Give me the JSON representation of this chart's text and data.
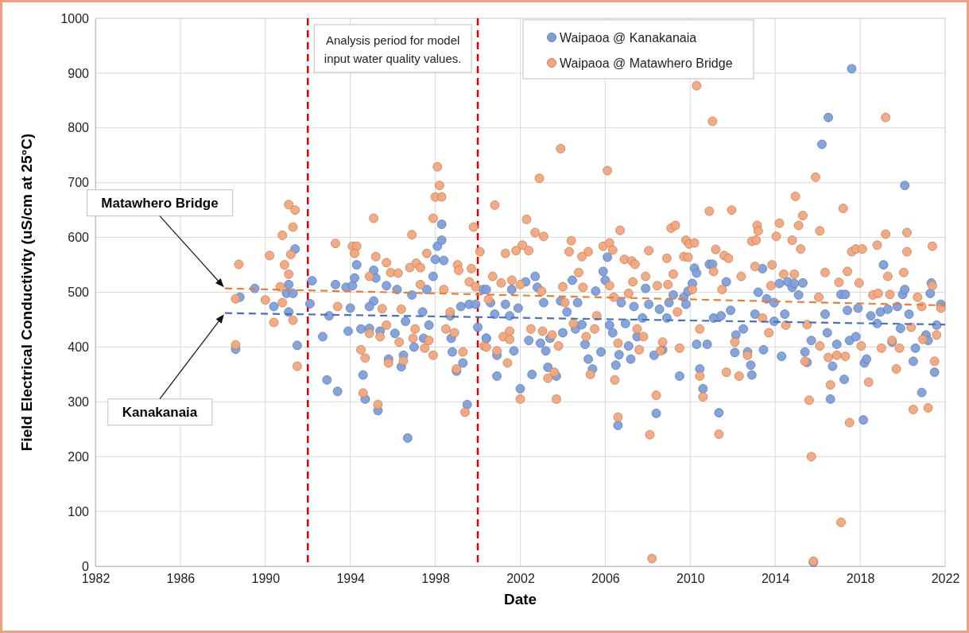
{
  "chart_data": {
    "type": "scatter",
    "xlabel": "Date",
    "ylabel": "Field Electrical Conductivity (uS/cm at 25°C)",
    "xlim": [
      1982,
      2022
    ],
    "xticks": [
      1982,
      1986,
      1990,
      1994,
      1998,
      2002,
      2006,
      2010,
      2014,
      2018,
      2022
    ],
    "ylim": [
      0,
      1000
    ],
    "yticks": [
      0,
      100,
      200,
      300,
      400,
      500,
      600,
      700,
      800,
      900,
      1000
    ],
    "grid": true,
    "legend": "top",
    "marker": "circle",
    "ref_lines": [
      {
        "axis": "x",
        "value": 1992,
        "color": "#e00000",
        "line_style": "dashed"
      },
      {
        "axis": "x",
        "value": 2000,
        "color": "#e00000",
        "line_style": "dashed"
      }
    ],
    "annotations": [
      "Analysis period for model input water quality values.",
      "Matawhero Bridge",
      "Kanakanaia"
    ],
    "series": [
      {
        "name": "Waipaoa @ Kanakanaia",
        "color": "#7c9fdc",
        "x": [
          1988.6,
          1988.8,
          1989.5,
          1990.4,
          1990.8,
          1991.0,
          1991.1,
          1991.4,
          1991.3,
          1991.1,
          1991.5,
          1992.2,
          1992.1,
          1992.7,
          1992.9,
          1993.4,
          1993.0,
          1993.3,
          1993.8,
          1993.9,
          1994.1,
          1994.3,
          1994.2,
          1994.0,
          1994.5,
          1994.6,
          1994.7,
          1995.3,
          1995.1,
          1995.2,
          1995.1,
          1994.9,
          1995.4,
          1994.9,
          1995.7,
          1995.8,
          1996.1,
          1996.2,
          1996.5,
          1996.4,
          1996.7,
          1996.6,
          1996.9,
          1997.0,
          1997.4,
          1997.6,
          1997.7,
          1997.9,
          1997.45,
          1998.0,
          1998.1,
          1998.3,
          1998.3,
          1998.4,
          1998.7,
          1998.75,
          1998.8,
          1999.0,
          1999.3,
          1999.5,
          1999.2,
          1999.6,
          1999.9,
          2000.25,
          2000.0,
          2000.4,
          2000.4,
          2000.6,
          2000.4,
          2000.8,
          2000.9,
          2000.9,
          2001.3,
          2001.5,
          2001.7,
          2001.6,
          2001.9,
          2002.0,
          2002.25,
          2002.4,
          2002.55,
          2002.7,
          2002.8,
          2002.95,
          2003.1,
          2003.2,
          2003.4,
          2003.3,
          2003.7,
          2003.9,
          2004.0,
          2004.2,
          2004.45,
          2004.6,
          2004.7,
          2004.9,
          2005.05,
          2005.2,
          2005.4,
          2005.55,
          2005.8,
          2005.9,
          2006.1,
          2006.0,
          2006.2,
          2006.35,
          2006.5,
          2006.6,
          2006.65,
          2006.75,
          2006.95,
          2007.1,
          2007.2,
          2007.35,
          2007.5,
          2007.75,
          2007.9,
          2008.05,
          2008.3,
          2008.4,
          2008.55,
          2008.7,
          2008.9,
          2009.0,
          2009.2,
          2009.5,
          2009.7,
          2009.8,
          2009.9,
          2010.1,
          2010.2,
          2010.3,
          2010.3,
          2010.45,
          2010.6,
          2010.8,
          2010.9,
          2011.05,
          2011.1,
          2011.35,
          2011.45,
          2011.7,
          2011.9,
          2012.1,
          2012.15,
          2012.5,
          2012.7,
          2012.85,
          2012.9,
          2013.05,
          2013.2,
          2013.4,
          2013.45,
          2013.6,
          2013.95,
          2013.95,
          2014.2,
          2014.3,
          2014.45,
          2014.6,
          2014.8,
          2014.9,
          2015.1,
          2015.3,
          2015.4,
          2015.5,
          2015.7,
          2015.8,
          2016.2,
          2016.5,
          2016.35,
          2016.45,
          2016.6,
          2016.7,
          2016.9,
          2017.1,
          2017.3,
          2017.25,
          2017.4,
          2017.6,
          2017.5,
          2017.8,
          2017.9,
          2018.15,
          2018.2,
          2018.3,
          2018.5,
          2018.8,
          2018.95,
          2019.1,
          2019.3,
          2019.5,
          2019.75,
          2019.9,
          2020.0,
          2020.1,
          2020.1,
          2020.3,
          2020.5,
          2020.6,
          2020.9,
          2021.1,
          2021.2,
          2021.35,
          2021.3,
          2021.5,
          2021.6,
          2021.8
        ],
        "values": [
          396,
          491,
          507,
          474,
          null,
          498,
          514,
          579,
          498,
          464,
          403,
          521,
          479,
          419,
          340,
          319,
          457,
          514,
          509,
          429,
          512,
          550,
          526,
          471,
          433,
          349,
          305,
          284,
          540,
          526,
          484,
          434,
          429,
          474,
          512,
          378,
          425,
          505,
          385,
          364,
          234,
          447,
          495,
          400,
          464,
          505,
          440,
          529,
          416,
          560,
          584,
          595,
          624,
          558,
          457,
          416,
          391,
          356,
          371,
          295,
          474,
          478,
          478,
          505,
          436,
          416,
          505,
          481,
          416,
          460,
          385,
          347,
          478,
          457,
          393,
          505,
          471,
          324,
          519,
          412,
          350,
          529,
          509,
          407,
          481,
          393,
          416,
          363,
          347,
          484,
          426,
          464,
          522,
          433,
          481,
          441,
          405,
          378,
          360,
          502,
          391,
          538,
          564,
          522,
          440,
          426,
          367,
          257,
          386,
          481,
          443,
          402,
          378,
          474,
          419,
          453,
          507,
          478,
          385,
          279,
          469,
          395,
          453,
          481,
          495,
          347,
          491,
          478,
          502,
          516,
          544,
          535,
          405,
          360,
          324,
          405,
          551,
          551,
          453,
          280,
          457,
          519,
          467,
          390,
          422,
          433,
          391,
          367,
          349,
          460,
          500,
          543,
          395,
          488,
          481,
          447,
          516,
          383,
          460,
          519,
          509,
          516,
          495,
          517,
          391,
          372,
          412,
          7,
          770,
          819,
          460,
          426,
          305,
          365,
          405,
          496,
          496,
          341,
          467,
          908,
          412,
          419,
          471,
          267,
          371,
          378,
          457,
          443,
          464,
          550,
          469,
          409,
          474,
          434,
          496,
          695,
          505,
          460,
          374,
          398,
          317,
          422,
          412,
          517,
          498,
          354,
          440,
          478
        ]
      },
      {
        "name": "Waipaoa @ Matawhero Bridge",
        "color": "#f4a57a",
        "x": [
          1988.75,
          1988.6,
          1988.6,
          1990.2,
          1990.4,
          1990.0,
          1990.8,
          1990.9,
          1991.1,
          1991.4,
          1991.3,
          1991.2,
          1991.1,
          1990.7,
          1990.8,
          1991.3,
          1991.5,
          1993.3,
          1993.4,
          1994.1,
          1994.3,
          1994.2,
          1994.9,
          1994.5,
          1994.7,
          1994.6,
          1995.3,
          1995.1,
          1995.2,
          1995.7,
          1995.9,
          1996.25,
          1995.5,
          1994.9,
          1995.4,
          1995.7,
          1995.8,
          1996.3,
          1996.4,
          1996.5,
          1996.9,
          1996.8,
          1997.1,
          1997.3,
          1997.3,
          1997.6,
          1997.05,
          1996.95,
          1997.5,
          1997.9,
          1997.7,
          1997.9,
          1998.1,
          1998.2,
          1998.0,
          1998.3,
          1998.4,
          1998.5,
          1998.7,
          1998.9,
          1999.0,
          1999.05,
          1999.1,
          1999.3,
          1999.4,
          1999.6,
          1999.7,
          1999.8,
          2000.1,
          1999.9,
          2000.3,
          2000.8,
          2001.3,
          2001.1,
          2000.7,
          2000.5,
          2000.4,
          2000.9,
          2001.4,
          2001.2,
          2001.5,
          2001.5,
          2002.0,
          2001.8,
          2002.1,
          2002.4,
          2002.3,
          2001.6,
          2002.0,
          2002.7,
          2003.1,
          2002.9,
          2002.5,
          2003.0,
          2003.05,
          2003.5,
          2003.3,
          2003.7,
          2003.6,
          2003.9,
          2004.4,
          2004.3,
          2004.0,
          2004.1,
          2003.8,
          2004.5,
          2004.75,
          2004.9,
          2005.2,
          2004.95,
          2005.1,
          2005.3,
          2005.5,
          2005.6,
          2005.9,
          2006.1,
          2006.2,
          2006.35,
          2006.2,
          2006.4,
          2006.45,
          2006.6,
          2006.6,
          2006.7,
          2006.9,
          2007.25,
          2007.4,
          2007.3,
          2007.1,
          2007.5,
          2007.6,
          2007.8,
          2007.9,
          2008.05,
          2008.1,
          2008.2,
          2008.4,
          2008.45,
          2008.6,
          2008.7,
          2008.9,
          2008.95,
          2009.1,
          2009.3,
          2009.2,
          2009.5,
          2009.4,
          2009.7,
          2009.8,
          2009.95,
          2010.2,
          2009.9,
          2010.1,
          2010.3,
          2010.45,
          2010.45,
          2010.6,
          2010.9,
          2011.05,
          2011.1,
          2011.2,
          2011.35,
          2011.5,
          2011.6,
          2011.8,
          2011.95,
          2011.7,
          2012.1,
          2012.4,
          2012.3,
          2012.7,
          2013.05,
          2012.9,
          2013.1,
          2013.15,
          2013.2,
          2013.4,
          2013.7,
          2013.85,
          2013.8,
          2014.05,
          2014.2,
          2014.4,
          2014.5,
          2014.8,
          2014.9,
          2014.95,
          2015.1,
          2015.3,
          2015.2,
          2015.4,
          2015.5,
          2015.6,
          2015.7,
          2015.8,
          2015.9,
          2016.05,
          2016.1,
          2016.35,
          2016.1,
          2016.5,
          2016.6,
          2016.9,
          2017.0,
          2017.1,
          2017.2,
          2017.3,
          2017.4,
          2017.5,
          2017.6,
          2017.8,
          2017.95,
          2018.1,
          2018.05,
          2018.4,
          2018.6,
          2018.8,
          2018.85,
          2019.0,
          2019.2,
          2019.2,
          2019.3,
          2019.4,
          2019.5,
          2019.7,
          2019.85,
          2020.05,
          2020.2,
          2020.2,
          2020.4,
          2020.5,
          2020.7,
          2020.9,
          2020.95,
          2021.2,
          2021.4,
          2021.4,
          2021.5,
          2021.6,
          2021.8
        ],
        "values": [
          551,
          488,
          404,
          567,
          445,
          486,
          604,
          550,
          660,
          650,
          619,
          569,
          533,
          510,
          481,
          449,
          365,
          589,
          474,
          584,
          584,
          571,
          529,
          395,
          380,
          316,
          295,
          635,
          565,
          554,
          536,
          535,
          470,
          425,
          419,
          440,
          371,
          409,
          469,
          375,
          605,
          545,
          553,
          545,
          514,
          571,
          433,
          416,
          398,
          385,
          412,
          635,
          729,
          695,
          674,
          674,
          505,
          433,
          464,
          426,
          360,
          550,
          540,
          391,
          281,
          519,
          543,
          619,
          574,
          510,
          402,
          659,
          571,
          517,
          529,
          487,
          400,
          393,
          371,
          419,
          429,
          414,
          305,
          576,
          586,
          576,
          633,
          522,
          514,
          609,
          602,
          708,
          433,
          502,
          429,
          422,
          343,
          305,
          354,
          762,
          594,
          574,
          510,
          481,
          402,
          443,
          536,
          565,
          574,
          509,
          419,
          350,
          433,
          457,
          584,
          722,
          590,
          577,
          512,
          491,
          340,
          272,
          407,
          613,
          560,
          557,
          551,
          519,
          498,
          433,
          395,
          419,
          529,
          576,
          240,
          14,
          312,
          512,
          393,
          409,
          562,
          514,
          617,
          622,
          533,
          398,
          464,
          565,
          595,
          588,
          590,
          564,
          505,
          877,
          433,
          347,
          309,
          648,
          812,
          538,
          578,
          241,
          505,
          567,
          562,
          650,
          354,
          409,
          529,
          347,
          385,
          547,
          593,
          595,
          622,
          612,
          453,
          426,
          550,
          512,
          602,
          626,
          533,
          440,
          595,
          533,
          675,
          622,
          640,
          579,
          374,
          441,
          303,
          200,
          9,
          710,
          491,
          612,
          536,
          402,
          381,
          331,
          385,
          518,
          80,
          653,
          383,
          538,
          262,
          574,
          579,
          517,
          579,
          402,
          336,
          495,
          586,
          498,
          398,
          819,
          606,
          529,
          496,
          412,
          360,
          398,
          536,
          574,
          609,
          436,
          286,
          491,
          474,
          414,
          289,
          512,
          584,
          374,
          422,
          471
        ]
      },
      {
        "type": "line",
        "color": "#4472c4",
        "line_style": "dashed",
        "marker": "none",
        "x": [
          1988.1,
          2022
        ],
        "values": [
          462,
          441
        ]
      },
      {
        "type": "line",
        "color": "#ed7d31",
        "line_style": "dashed",
        "marker": "none",
        "x": [
          1988.1,
          2022
        ],
        "values": [
          507,
          476
        ]
      }
    ]
  }
}
